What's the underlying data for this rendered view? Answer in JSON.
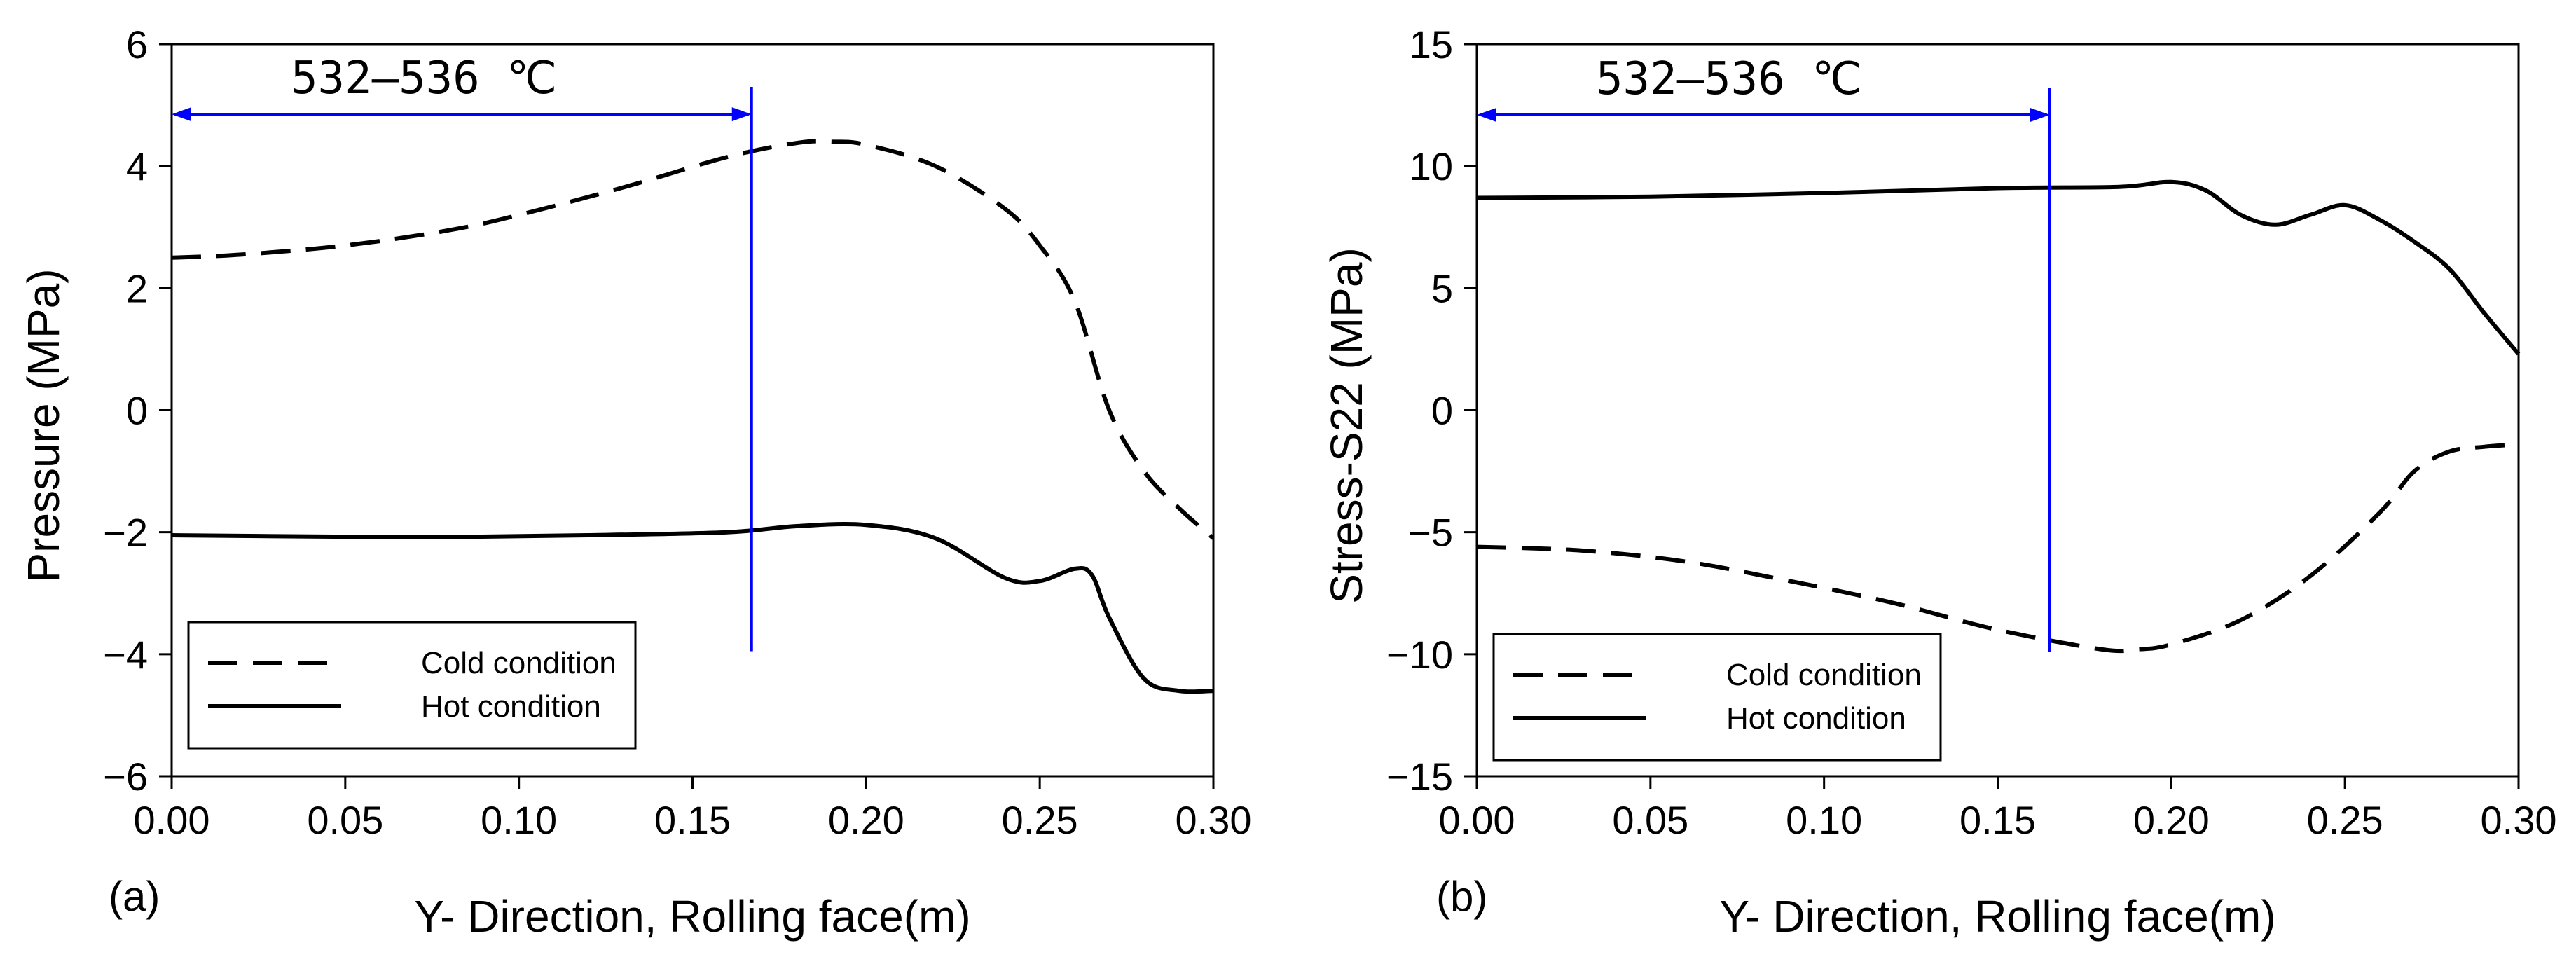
{
  "chart_data": [
    {
      "type": "line",
      "panel_label": "(a)",
      "title": "",
      "xlabel": "Y- Direction, Rolling face(m)",
      "ylabel": "Pressure (MPa)",
      "xlim": [
        0,
        0.3
      ],
      "ylim": [
        -6,
        6
      ],
      "x_ticks": [
        0.0,
        0.05,
        0.1,
        0.15,
        0.2,
        0.25,
        0.3
      ],
      "x_tick_labels": [
        "0.00",
        "0.05",
        "0.10",
        "0.15",
        "0.20",
        "0.25",
        "0.30"
      ],
      "y_ticks": [
        -6,
        -4,
        -2,
        0,
        2,
        4,
        6
      ],
      "y_tick_labels": [
        "−6",
        "−4",
        "−2",
        "0",
        "2",
        "4",
        "6"
      ],
      "grid": false,
      "legend_position": "bottom-left",
      "annotation": {
        "text": "532–536 ℃",
        "x_start": 0.0,
        "x_end": 0.167,
        "arrow_y": 4.85,
        "marker_x": 0.167,
        "marker_y_top": 5.3,
        "marker_y_bottom": -3.95,
        "color": "#0000ff"
      },
      "series": [
        {
          "name": "Cold condition",
          "style": "dashed",
          "x": [
            0.0,
            0.02,
            0.05,
            0.08,
            0.1,
            0.13,
            0.16,
            0.18,
            0.19,
            0.2,
            0.22,
            0.24,
            0.25,
            0.26,
            0.27,
            0.28,
            0.29,
            0.3
          ],
          "y": [
            2.5,
            2.55,
            2.7,
            2.95,
            3.2,
            3.65,
            4.15,
            4.38,
            4.4,
            4.35,
            4.0,
            3.3,
            2.7,
            1.8,
            0.0,
            -1.0,
            -1.6,
            -2.1
          ]
        },
        {
          "name": "Hot condition",
          "style": "solid",
          "x": [
            0.0,
            0.04,
            0.08,
            0.12,
            0.16,
            0.18,
            0.2,
            0.22,
            0.24,
            0.25,
            0.26,
            0.265,
            0.27,
            0.28,
            0.29,
            0.3
          ],
          "y": [
            -2.05,
            -2.07,
            -2.08,
            -2.05,
            -2.0,
            -1.9,
            -1.88,
            -2.1,
            -2.75,
            -2.8,
            -2.6,
            -2.7,
            -3.4,
            -4.4,
            -4.6,
            -4.6
          ]
        }
      ]
    },
    {
      "type": "line",
      "panel_label": "(b)",
      "title": "",
      "xlabel": "Y- Direction, Rolling face(m)",
      "ylabel": "Stress-S22 (MPa)",
      "xlim": [
        0,
        0.3
      ],
      "ylim": [
        -15,
        15
      ],
      "x_ticks": [
        0.0,
        0.05,
        0.1,
        0.15,
        0.2,
        0.25,
        0.3
      ],
      "x_tick_labels": [
        "0.00",
        "0.05",
        "0.10",
        "0.15",
        "0.20",
        "0.25",
        "0.30"
      ],
      "y_ticks": [
        -15,
        -10,
        -5,
        0,
        5,
        10,
        15
      ],
      "y_tick_labels": [
        "−15",
        "−10",
        "−5",
        "0",
        "5",
        "10",
        "15"
      ],
      "grid": false,
      "legend_position": "bottom-left",
      "annotation": {
        "text": "532–536 ℃",
        "x_start": 0.0,
        "x_end": 0.165,
        "arrow_y": 12.1,
        "marker_x": 0.165,
        "marker_y_top": 13.2,
        "marker_y_bottom": -9.9,
        "color": "#0000ff"
      },
      "series": [
        {
          "name": "Cold condition",
          "style": "dashed",
          "x": [
            0.0,
            0.03,
            0.06,
            0.09,
            0.12,
            0.15,
            0.18,
            0.19,
            0.2,
            0.22,
            0.24,
            0.26,
            0.27,
            0.28,
            0.29,
            0.3
          ],
          "y": [
            -5.6,
            -5.75,
            -6.2,
            -7.0,
            -7.9,
            -9.0,
            -9.8,
            -9.8,
            -9.6,
            -8.6,
            -6.8,
            -4.2,
            -2.5,
            -1.7,
            -1.5,
            -1.4
          ]
        },
        {
          "name": "Hot condition",
          "style": "solid",
          "x": [
            0.0,
            0.05,
            0.1,
            0.15,
            0.185,
            0.2,
            0.21,
            0.22,
            0.23,
            0.24,
            0.25,
            0.26,
            0.27,
            0.28,
            0.29,
            0.3
          ],
          "y": [
            8.7,
            8.75,
            8.9,
            9.1,
            9.15,
            9.35,
            9.0,
            8.0,
            7.6,
            8.0,
            8.4,
            7.8,
            6.9,
            5.8,
            4.0,
            2.3
          ]
        }
      ]
    }
  ]
}
